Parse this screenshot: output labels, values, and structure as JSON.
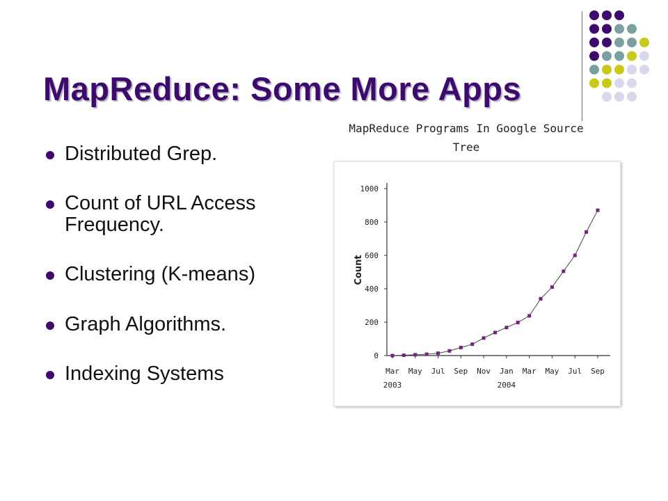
{
  "slide": {
    "title": "MapReduce: Some More Apps",
    "bullets": [
      "Distributed Grep.",
      "Count of URL Access Frequency.",
      "Clustering (K-means)",
      "Graph Algorithms.",
      "Indexing Systems"
    ],
    "bullet_color": "#3d0a6e"
  },
  "chart_caption": "MapReduce Programs In Google Source Tree",
  "decoration": {
    "palette": {
      "purple": "#3d0a6e",
      "teal": "#7aa0a2",
      "lime": "#c8c918",
      "lavender": "#d8d8ec"
    },
    "dot_grid": [
      [
        "purple",
        "purple",
        "purple",
        "",
        ""
      ],
      [
        "purple",
        "purple",
        "teal",
        "teal",
        ""
      ],
      [
        "purple",
        "purple",
        "teal",
        "teal",
        "lime"
      ],
      [
        "purple",
        "teal",
        "teal",
        "lime",
        "lavender"
      ],
      [
        "teal",
        "lime",
        "lime",
        "lavender",
        "lavender"
      ],
      [
        "lime",
        "lime",
        "lavender",
        "lavender",
        ""
      ],
      [
        "",
        "lavender",
        "lavender",
        "lavender",
        ""
      ]
    ]
  },
  "chart_data": {
    "type": "line",
    "ylabel": "Count",
    "ylim": [
      0,
      1000
    ],
    "yticks": [
      0,
      200,
      400,
      600,
      800,
      1000
    ],
    "xticks": [
      {
        "label": "Mar",
        "year": "2003"
      },
      {
        "label": "May",
        "year": ""
      },
      {
        "label": "Jul",
        "year": ""
      },
      {
        "label": "Sep",
        "year": ""
      },
      {
        "label": "Nov",
        "year": ""
      },
      {
        "label": "Jan",
        "year": "2004"
      },
      {
        "label": "Mar",
        "year": ""
      },
      {
        "label": "May",
        "year": ""
      },
      {
        "label": "Jul",
        "year": ""
      },
      {
        "label": "Sep",
        "year": ""
      }
    ],
    "marker_color": "#7a1f86",
    "series": [
      {
        "values": [
          0,
          2,
          5,
          8,
          14,
          28,
          48,
          68,
          105,
          138,
          168,
          198,
          238,
          340,
          410,
          505,
          600,
          740,
          870
        ]
      }
    ]
  }
}
